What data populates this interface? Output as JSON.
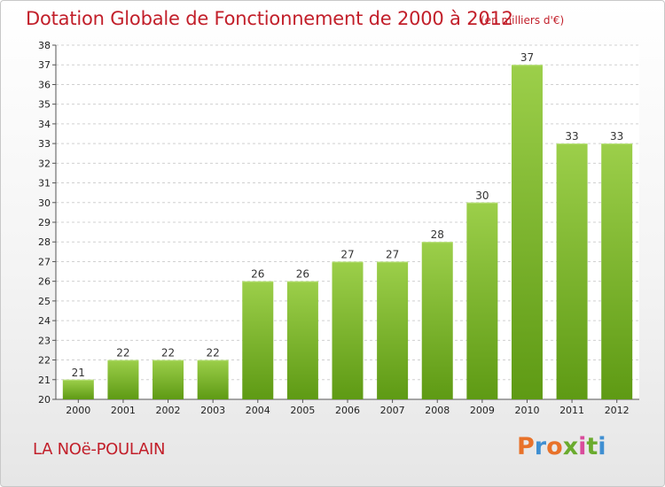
{
  "header": {
    "title": "Dotation Globale de Fonctionnement de 2000 à 2012",
    "unit": "(en milliers d'€)"
  },
  "footer": {
    "commune": "LA NOë-POULAIN",
    "brand": "Proxiti",
    "brand_colors": [
      "#e8722a",
      "#3f8fd2",
      "#e8722a",
      "#6aab2e",
      "#d94b9b",
      "#6aab2e",
      "#3f8fd2"
    ]
  },
  "colors": {
    "title": "#c21f2a",
    "bar_light": "#9ccf4a",
    "bar_dark": "#5e9a14",
    "grid": "#d0d0d0",
    "axis_text": "#222222"
  },
  "chart_data": {
    "type": "bar",
    "title": "Dotation Globale de Fonctionnement de 2000 à 2012",
    "categories": [
      "2000",
      "2001",
      "2002",
      "2003",
      "2004",
      "2005",
      "2006",
      "2007",
      "2008",
      "2009",
      "2010",
      "2011",
      "2012"
    ],
    "values": [
      21,
      22,
      22,
      22,
      26,
      26,
      27,
      27,
      28,
      30,
      37,
      33,
      33
    ],
    "ylim": [
      20,
      38
    ],
    "yticks": [
      20,
      21,
      22,
      23,
      24,
      25,
      26,
      27,
      28,
      29,
      30,
      31,
      32,
      33,
      34,
      35,
      36,
      37,
      38
    ],
    "xlabel": "",
    "ylabel": "",
    "grid": true
  }
}
